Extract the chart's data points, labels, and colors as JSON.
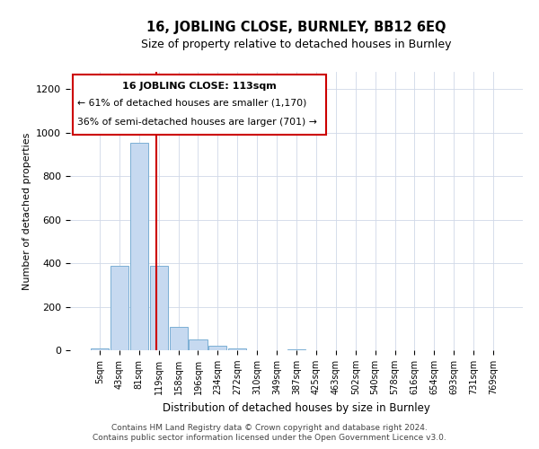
{
  "title": "16, JOBLING CLOSE, BURNLEY, BB12 6EQ",
  "subtitle": "Size of property relative to detached houses in Burnley",
  "xlabel": "Distribution of detached houses by size in Burnley",
  "ylabel": "Number of detached properties",
  "bar_labels": [
    "5sqm",
    "43sqm",
    "81sqm",
    "119sqm",
    "158sqm",
    "196sqm",
    "234sqm",
    "272sqm",
    "310sqm",
    "349sqm",
    "387sqm",
    "425sqm",
    "463sqm",
    "502sqm",
    "540sqm",
    "578sqm",
    "616sqm",
    "654sqm",
    "693sqm",
    "731sqm",
    "769sqm"
  ],
  "bar_values": [
    10,
    390,
    955,
    390,
    108,
    50,
    20,
    8,
    0,
    0,
    5,
    0,
    0,
    0,
    0,
    0,
    0,
    0,
    0,
    0,
    0
  ],
  "bar_color": "#c6d9f0",
  "bar_edgecolor": "#7bafd4",
  "vline_x": 2.88,
  "vline_color": "#cc0000",
  "ylim": [
    0,
    1280
  ],
  "yticks": [
    0,
    200,
    400,
    600,
    800,
    1000,
    1200
  ],
  "annotation_title": "16 JOBLING CLOSE: 113sqm",
  "annotation_line1": "← 61% of detached houses are smaller (1,170)",
  "annotation_line2": "36% of semi-detached houses are larger (701) →",
  "annotation_box_color": "#cc0000",
  "footer_line1": "Contains HM Land Registry data © Crown copyright and database right 2024.",
  "footer_line2": "Contains public sector information licensed under the Open Government Licence v3.0.",
  "bg_color": "#ffffff",
  "grid_color": "#d0d8e8"
}
